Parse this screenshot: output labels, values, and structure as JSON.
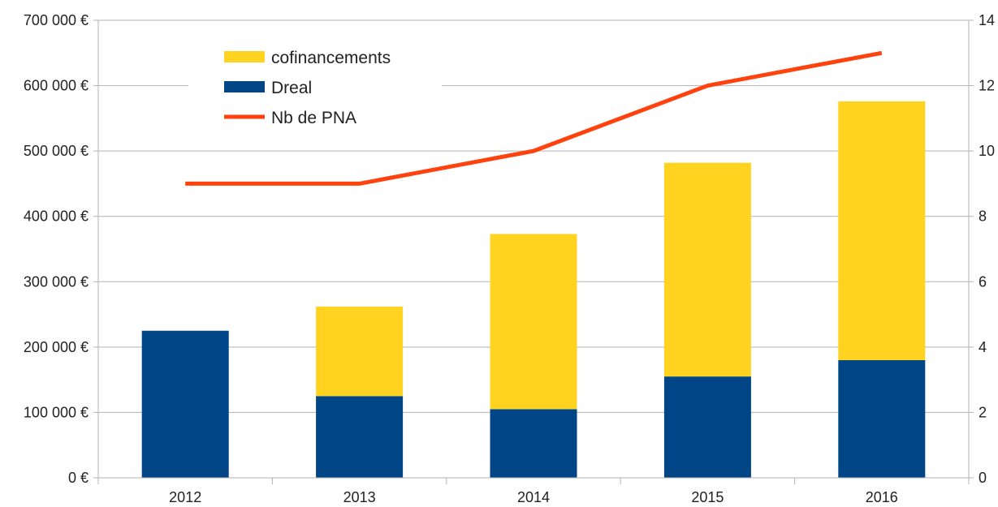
{
  "chart_data": {
    "type": "bar",
    "stacked": true,
    "categories": [
      "2012",
      "2013",
      "2014",
      "2015",
      "2016"
    ],
    "series": [
      {
        "name": "Dreal",
        "kind": "bar",
        "axis": "left",
        "color": "#004586",
        "values": [
          225000,
          125000,
          105000,
          155000,
          180000
        ]
      },
      {
        "name": "cofinancements",
        "kind": "bar",
        "axis": "left",
        "color": "#ffd320",
        "values": [
          0,
          137000,
          268000,
          327000,
          396000
        ]
      },
      {
        "name": "Nb de PNA",
        "kind": "line",
        "axis": "right",
        "color": "#ff420e",
        "values": [
          9,
          9,
          10,
          12,
          13
        ]
      }
    ],
    "y_left": {
      "min": 0,
      "max": 700000,
      "ticks": [
        0,
        100000,
        200000,
        300000,
        400000,
        500000,
        600000,
        700000
      ],
      "tick_labels": [
        "0 €",
        "100 000 €",
        "200 000 €",
        "300 000 €",
        "400 000 €",
        "500 000 €",
        "600 000 €",
        "700 000 €"
      ]
    },
    "y_right": {
      "min": 0,
      "max": 14,
      "ticks": [
        0,
        2,
        4,
        6,
        8,
        10,
        12,
        14
      ],
      "tick_labels": [
        "0",
        "2",
        "4",
        "6",
        "8",
        "10",
        "12",
        "14"
      ]
    },
    "legend": {
      "position": "top-left",
      "order": [
        "cofinancements",
        "Dreal",
        "Nb de PNA"
      ]
    },
    "grid": true,
    "grid_color": "#b3b3b3"
  }
}
